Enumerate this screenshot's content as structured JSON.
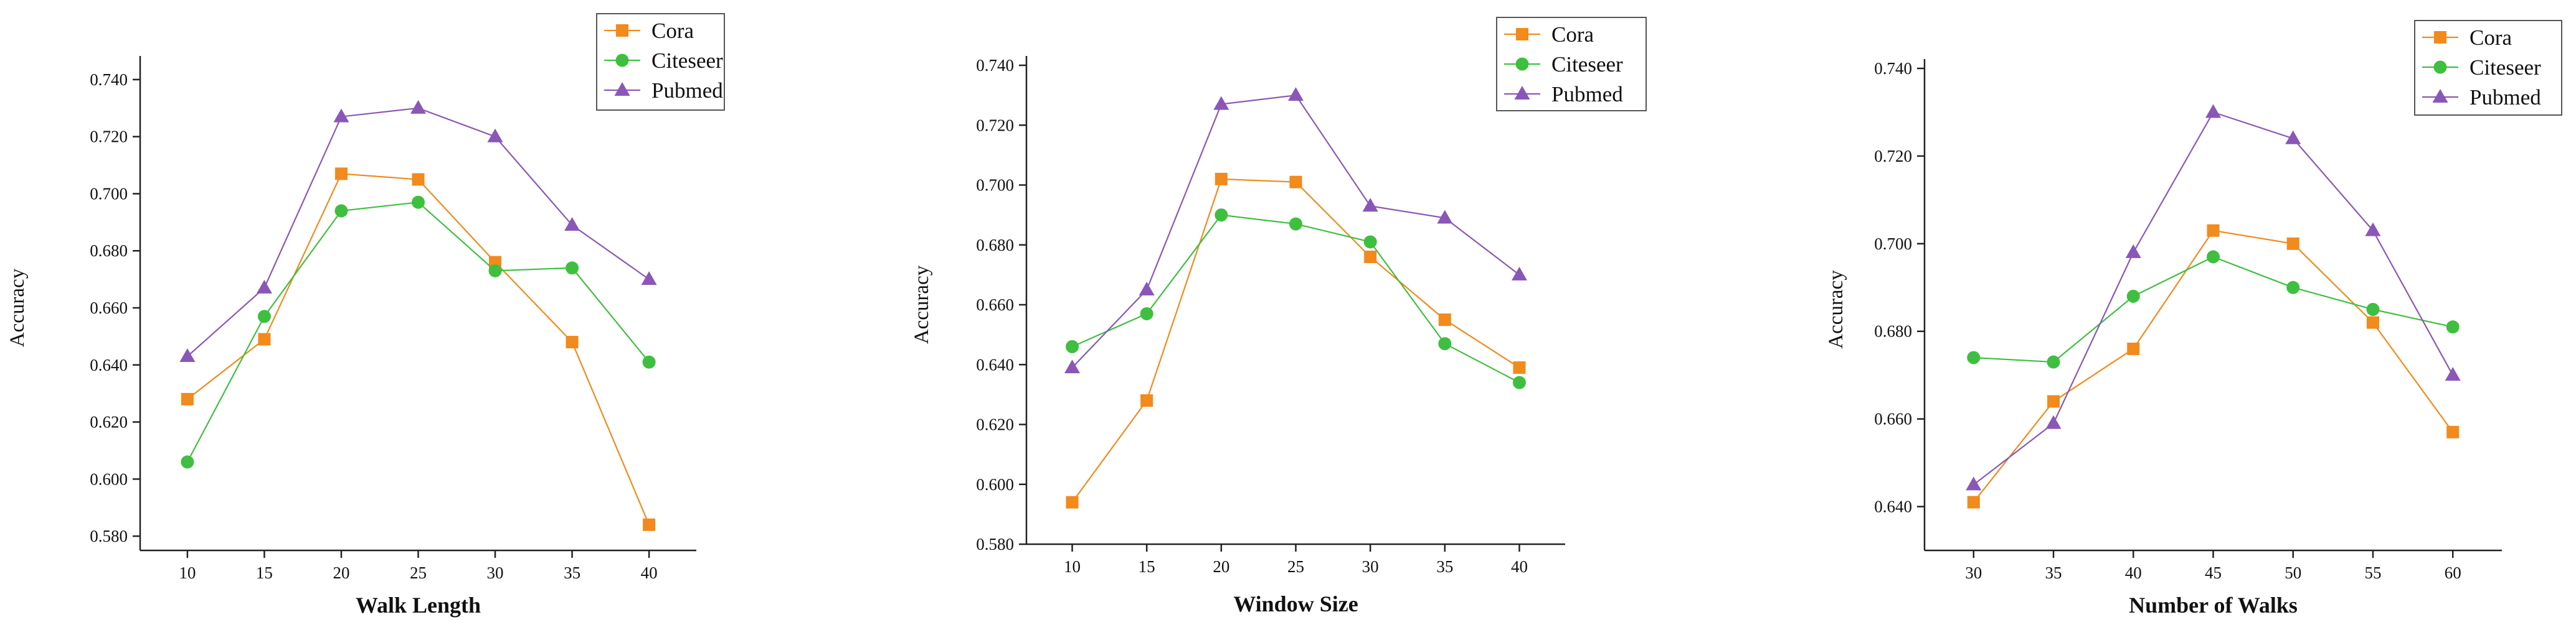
{
  "colors": {
    "Cora": "#f28a1c",
    "Citeseer": "#3fbf3f",
    "Pubmed": "#8a57b8"
  },
  "chart_data": [
    {
      "type": "line",
      "xlabel": "Walk Length",
      "ylabel": "Accuracy",
      "x": [
        10,
        15,
        20,
        25,
        30,
        35,
        40
      ],
      "x_ticks": [
        "10",
        "15",
        "20",
        "25",
        "30",
        "35",
        "40"
      ],
      "ylim": [
        0.575,
        0.745
      ],
      "y_ticks": [
        "0.580",
        "0.600",
        "0.620",
        "0.640",
        "0.660",
        "0.680",
        "0.700",
        "0.720",
        "0.740"
      ],
      "legend": "top-right",
      "series": [
        {
          "name": "Cora",
          "marker": "square",
          "values": [
            0.628,
            0.649,
            0.707,
            0.705,
            0.676,
            0.648,
            0.584
          ]
        },
        {
          "name": "Citeseer",
          "marker": "circle",
          "values": [
            0.606,
            0.657,
            0.694,
            0.697,
            0.673,
            0.674,
            0.641
          ]
        },
        {
          "name": "Pubmed",
          "marker": "triangle",
          "values": [
            0.643,
            0.667,
            0.727,
            0.73,
            0.72,
            0.689,
            0.67
          ]
        }
      ]
    },
    {
      "type": "line",
      "xlabel": "Window Size",
      "ylabel": "Accuracy",
      "x": [
        10,
        15,
        20,
        25,
        30,
        35,
        40
      ],
      "x_ticks": [
        "10",
        "15",
        "20",
        "25",
        "30",
        "35",
        "40"
      ],
      "ylim": [
        0.58,
        0.74
      ],
      "y_ticks": [
        "0.580",
        "0.600",
        "0.620",
        "0.640",
        "0.660",
        "0.680",
        "0.700",
        "0.720",
        "0.740"
      ],
      "legend": "top-right",
      "series": [
        {
          "name": "Cora",
          "marker": "square",
          "values": [
            0.594,
            0.628,
            0.702,
            0.701,
            0.676,
            0.655,
            0.639
          ]
        },
        {
          "name": "Citeseer",
          "marker": "circle",
          "values": [
            0.646,
            0.657,
            0.69,
            0.687,
            0.681,
            0.647,
            0.634
          ]
        },
        {
          "name": "Pubmed",
          "marker": "triangle",
          "values": [
            0.639,
            0.665,
            0.727,
            0.73,
            0.693,
            0.689,
            0.67
          ]
        }
      ]
    },
    {
      "type": "line",
      "xlabel": "Number of Walks",
      "ylabel": "Accuracy",
      "x": [
        30,
        35,
        40,
        45,
        50,
        55,
        60
      ],
      "x_ticks": [
        "30",
        "35",
        "40",
        "45",
        "50",
        "55",
        "60"
      ],
      "ylim": [
        0.63,
        0.74
      ],
      "y_ticks": [
        "0.640",
        "0.660",
        "0.680",
        "0.700",
        "0.720",
        "0.740"
      ],
      "legend": "top-right",
      "series": [
        {
          "name": "Cora",
          "marker": "square",
          "values": [
            0.641,
            0.664,
            0.676,
            0.703,
            0.7,
            0.682,
            0.657
          ]
        },
        {
          "name": "Citeseer",
          "marker": "circle",
          "values": [
            0.674,
            0.673,
            0.688,
            0.697,
            0.69,
            0.685,
            0.681
          ]
        },
        {
          "name": "Pubmed",
          "marker": "triangle",
          "values": [
            0.645,
            0.659,
            0.698,
            0.73,
            0.724,
            0.703,
            0.67
          ]
        }
      ]
    }
  ]
}
